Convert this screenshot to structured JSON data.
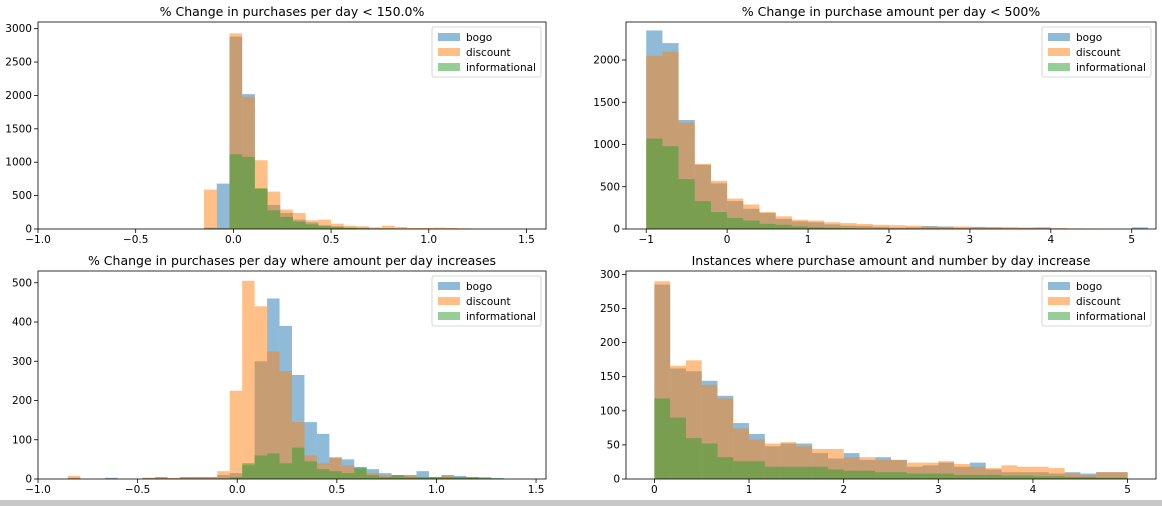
{
  "chart_data": [
    {
      "type": "histogram",
      "title": "% Change in purchases per day < 150.0%",
      "xlim": [
        -1.0,
        1.6
      ],
      "ylim": [
        0,
        3100
      ],
      "xticks": [
        -1.0,
        -0.5,
        0.0,
        0.5,
        1.0,
        1.5
      ],
      "xticklabels": [
        "−1.0",
        "−0.5",
        "0.0",
        "0.5",
        "1.0",
        "1.5"
      ],
      "yticks": [
        0,
        500,
        1000,
        1500,
        2000,
        2500,
        3000
      ],
      "bin_start": -0.15,
      "bin_width": 0.065,
      "legend": "top-right",
      "series": [
        {
          "name": "bogo",
          "color": "#1f77b4",
          "values": [
            20,
            680,
            2880,
            2020,
            600,
            360,
            240,
            140,
            100,
            40,
            40,
            25,
            20,
            10,
            10,
            5,
            5,
            0,
            0,
            0,
            0
          ]
        },
        {
          "name": "discount",
          "color": "#ff7f0e",
          "values": [
            590,
            10,
            2930,
            1980,
            1030,
            560,
            290,
            240,
            130,
            140,
            80,
            50,
            40,
            25,
            50,
            30,
            15,
            15,
            20,
            15,
            10
          ]
        },
        {
          "name": "informational",
          "color": "#2ca02c",
          "values": [
            5,
            10,
            1120,
            1080,
            610,
            280,
            180,
            110,
            70,
            55,
            30,
            15,
            10,
            5,
            5,
            0,
            0,
            0,
            0,
            0,
            0
          ]
        }
      ]
    },
    {
      "type": "histogram",
      "title": "% Change in purchase amount per day < 500%",
      "xlim": [
        -1.25,
        5.3
      ],
      "ylim": [
        0,
        2450
      ],
      "xticks": [
        -1,
        0,
        1,
        2,
        3,
        4,
        5
      ],
      "xticklabels": [
        "−1",
        "0",
        "1",
        "2",
        "3",
        "4",
        "5"
      ],
      "yticks": [
        0,
        500,
        1000,
        1500,
        2000
      ],
      "bin_start": -1.0,
      "bin_width": 0.2,
      "legend": "top-right",
      "series": [
        {
          "name": "bogo",
          "color": "#1f77b4",
          "values": [
            2350,
            2200,
            1290,
            760,
            540,
            330,
            240,
            190,
            120,
            90,
            80,
            55,
            40,
            35,
            25,
            15,
            20,
            35,
            30,
            15,
            25,
            20,
            10,
            15,
            20,
            5,
            5,
            0,
            0,
            0,
            20
          ]
        },
        {
          "name": "discount",
          "color": "#ff7f0e",
          "values": [
            2050,
            2100,
            1260,
            770,
            570,
            360,
            290,
            200,
            150,
            110,
            100,
            80,
            70,
            60,
            50,
            45,
            40,
            30,
            25,
            30,
            20,
            20,
            25,
            15,
            10,
            10,
            5,
            5,
            0,
            0,
            0
          ]
        },
        {
          "name": "informational",
          "color": "#2ca02c",
          "values": [
            1070,
            980,
            590,
            330,
            200,
            130,
            100,
            60,
            50,
            30,
            20,
            15,
            10,
            5,
            5,
            0,
            0,
            0,
            0,
            0,
            0,
            0,
            0,
            0,
            0,
            0,
            0,
            0,
            0,
            0,
            0
          ]
        }
      ]
    },
    {
      "type": "histogram",
      "title": "% Change in purchases per day where amount per day increases",
      "xlim": [
        -1.0,
        1.55
      ],
      "ylim": [
        0,
        530
      ],
      "xticks": [
        -1.0,
        -0.5,
        0.0,
        0.5,
        1.0,
        1.5
      ],
      "xticklabels": [
        "−1.0",
        "−0.5",
        "0.0",
        "0.5",
        "1.0",
        "1.5"
      ],
      "yticks": [
        0,
        100,
        200,
        300,
        400,
        500
      ],
      "bin_start": -0.85,
      "bin_width": 0.0625,
      "legend": "top-right",
      "series": [
        {
          "name": "bogo",
          "color": "#1f77b4",
          "values": [
            3,
            0,
            0,
            3,
            0,
            0,
            3,
            5,
            2,
            5,
            5,
            5,
            10,
            15,
            35,
            300,
            460,
            390,
            265,
            145,
            115,
            55,
            50,
            30,
            25,
            15,
            10,
            10,
            20,
            5,
            10,
            8,
            5,
            2,
            2
          ]
        },
        {
          "name": "discount",
          "color": "#ff7f0e",
          "values": [
            8,
            0,
            0,
            0,
            0,
            0,
            3,
            5,
            3,
            5,
            5,
            5,
            20,
            225,
            505,
            440,
            325,
            275,
            145,
            60,
            40,
            55,
            35,
            25,
            15,
            10,
            10,
            10,
            5,
            5,
            10,
            5,
            3,
            2,
            0
          ]
        },
        {
          "name": "informational",
          "color": "#2ca02c",
          "values": [
            0,
            0,
            0,
            0,
            0,
            0,
            0,
            0,
            0,
            0,
            0,
            0,
            0,
            5,
            40,
            60,
            65,
            40,
            80,
            45,
            25,
            20,
            15,
            30,
            10,
            5,
            10,
            5,
            5,
            5,
            5,
            5,
            5,
            5,
            2
          ]
        }
      ]
    },
    {
      "type": "histogram",
      "title": "Instances where purchase amount and number by day increase",
      "xlim": [
        -0.3,
        5.3
      ],
      "ylim": [
        0,
        305
      ],
      "xticks": [
        0,
        1,
        2,
        3,
        4,
        5
      ],
      "xticklabels": [
        "0",
        "1",
        "2",
        "3",
        "4",
        "5"
      ],
      "yticks": [
        0,
        50,
        100,
        150,
        200,
        250,
        300
      ],
      "bin_start": 0.0,
      "bin_width": 0.1667,
      "legend": "top-right",
      "series": [
        {
          "name": "bogo",
          "color": "#1f77b4",
          "values": [
            285,
            162,
            158,
            144,
            122,
            82,
            66,
            48,
            52,
            52,
            38,
            30,
            38,
            28,
            32,
            28,
            18,
            20,
            24,
            18,
            24,
            14,
            10,
            10,
            10,
            8,
            10,
            8,
            10,
            10
          ]
        },
        {
          "name": "discount",
          "color": "#ff7f0e",
          "values": [
            290,
            166,
            174,
            138,
            118,
            74,
            58,
            52,
            54,
            48,
            44,
            44,
            32,
            32,
            28,
            28,
            24,
            24,
            26,
            22,
            18,
            16,
            20,
            18,
            18,
            16,
            8,
            6,
            10,
            10
          ]
        },
        {
          "name": "informational",
          "color": "#2ca02c",
          "values": [
            118,
            90,
            60,
            52,
            32,
            26,
            26,
            18,
            18,
            18,
            18,
            14,
            12,
            12,
            10,
            10,
            8,
            8,
            8,
            6,
            6,
            6,
            5,
            5,
            4,
            4,
            3,
            3,
            2,
            2
          ]
        }
      ]
    }
  ]
}
